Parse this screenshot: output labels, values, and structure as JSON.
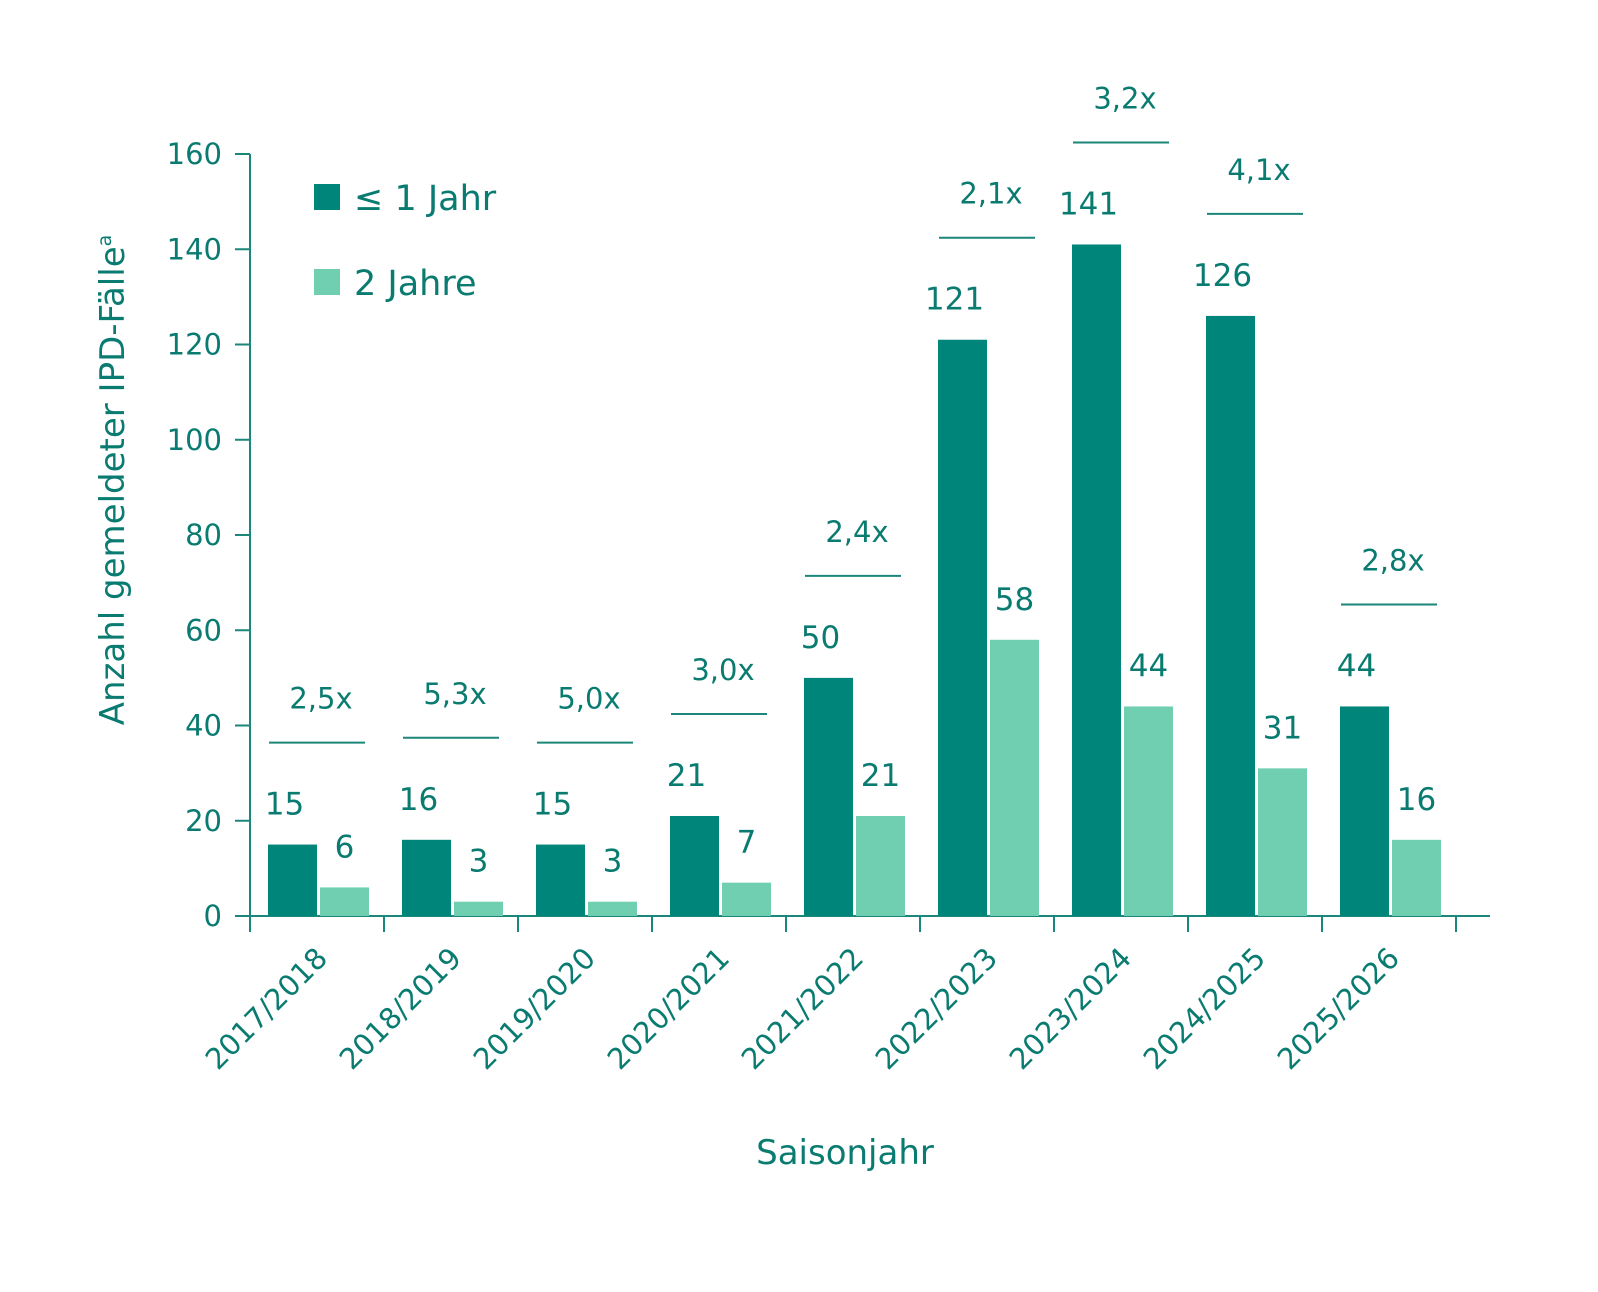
{
  "chart_data": {
    "type": "bar",
    "title": "",
    "xlabel": "Saisonjahr",
    "ylabel": "Anzahl gemeldeter IPD-Fälle",
    "ylabel_superscript": "a",
    "ylim": [
      0,
      160
    ],
    "yticks": [
      0,
      20,
      40,
      60,
      80,
      100,
      120,
      140,
      160
    ],
    "categories": [
      "2017/2018",
      "2018/2019",
      "2019/2020",
      "2020/2021",
      "2021/2022",
      "2022/2023",
      "2023/2024",
      "2024/2025",
      "2025/2026"
    ],
    "series": [
      {
        "name": "≤ 1 Jahr",
        "color": "#00857a",
        "values": [
          15,
          16,
          15,
          21,
          50,
          121,
          141,
          126,
          44
        ]
      },
      {
        "name": "2 Jahre",
        "color": "#6fcfb0",
        "values": [
          6,
          3,
          3,
          7,
          21,
          58,
          44,
          31,
          16
        ]
      }
    ],
    "ratios": [
      "2,5x",
      "5,3x",
      "5,0x",
      "3,0x",
      "2,4x",
      "2,1x",
      "3,2x",
      "4,1x",
      "2,8x"
    ],
    "legend_position": "top-left",
    "grid": false
  },
  "colors": {
    "axis": "#1b867a",
    "text": "#0a7b70"
  }
}
